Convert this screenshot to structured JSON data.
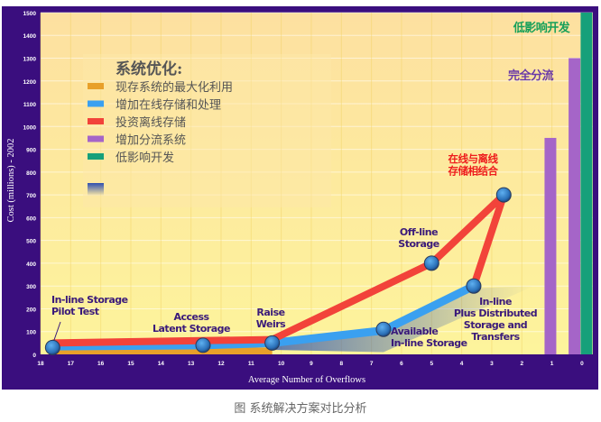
{
  "chart_data": {
    "type": "line",
    "title": "系统优化:",
    "xlabel": "Average Number of Overflows",
    "ylabel": "Cost (millions) - 2002",
    "xlim": [
      18,
      0
    ],
    "ylim": [
      0,
      1500
    ],
    "x_ticks": [
      "18",
      "17",
      "16",
      "15",
      "14",
      "13",
      "12",
      "11",
      "10",
      "9",
      "8",
      "7",
      "6",
      "5",
      "4",
      "3",
      "2",
      "1",
      "0"
    ],
    "y_ticks": [
      "0",
      "100",
      "200",
      "300",
      "400",
      "500",
      "600",
      "700",
      "800",
      "900",
      "1000",
      "1100",
      "1200",
      "1300",
      "1400",
      "1500"
    ],
    "grid": true,
    "legend_placement": "top-left",
    "legend": [
      {
        "label": "现存系统的最大化利用",
        "color": "#e8a02a"
      },
      {
        "label": "增加在线存储和处理",
        "color": "#3aa0f0"
      },
      {
        "label": "投资离线存储",
        "color": "#f2433a"
      },
      {
        "label": "增加分流系统",
        "color": "#a565c8"
      },
      {
        "label": "低影响开发",
        "color": "#16a07a"
      }
    ],
    "series": [
      {
        "name": "现存系统的最大化利用",
        "type": "area",
        "color": "#e8a02a",
        "x": [
          17.6,
          10.3
        ],
        "y": [
          25,
          30
        ]
      },
      {
        "name": "增加在线存储和处理",
        "color": "#3aa0f0",
        "x": [
          17.6,
          12.6,
          10.3,
          6.6,
          3.6
        ],
        "y": [
          35,
          40,
          50,
          105,
          300
        ]
      },
      {
        "name": "投资离线存储",
        "color": "#f2433a",
        "x": [
          17.6,
          10.3,
          5.0,
          2.6,
          3.6
        ],
        "y": [
          50,
          65,
          400,
          700,
          300
        ]
      },
      {
        "name": "增加分流系统",
        "type": "bar",
        "color": "#a565c8",
        "x": [
          1.05,
          0.25
        ],
        "y": [
          950,
          1300
        ]
      },
      {
        "name": "低影响开发",
        "type": "bar",
        "color": "#16a07a",
        "x": [
          -0.15
        ],
        "y": [
          1500
        ]
      }
    ],
    "points": [
      {
        "label": "In-line Storage Pilot Test",
        "x": 17.6,
        "y": 30
      },
      {
        "label": "Access Latent Storage",
        "x": 12.6,
        "y": 40
      },
      {
        "label": "Raise Weirs",
        "x": 10.3,
        "y": 50
      },
      {
        "label": "Available In-line Storage",
        "x": 6.6,
        "y": 110
      },
      {
        "label": "Off-line Storage",
        "x": 5.0,
        "y": 400
      },
      {
        "label": "In-line Plus Distributed Storage and Transfers",
        "x": 3.6,
        "y": 300
      },
      {
        "label": "",
        "x": 2.6,
        "y": 700
      }
    ],
    "annotations": [
      {
        "lines": [
          "In-line Storage",
          "Pilot Test"
        ],
        "color": "#3a1a7a"
      },
      {
        "lines": [
          "Access",
          "Latent Storage"
        ],
        "color": "#3a1a7a"
      },
      {
        "lines": [
          "Raise",
          "Weirs"
        ],
        "color": "#3a1a7a"
      },
      {
        "lines": [
          "Available",
          "In-line Storage"
        ],
        "color": "#3a1a7a"
      },
      {
        "lines": [
          "Off-line",
          "Storage"
        ],
        "color": "#3a1a7a"
      },
      {
        "lines": [
          "In-line",
          "Plus  Distributed",
          "Storage and",
          "Transfers"
        ],
        "color": "#3a1a7a"
      },
      {
        "lines": [
          "在线与离线",
          "存储相结合"
        ],
        "color": "#ee1c1c"
      },
      {
        "lines": [
          "完全分流"
        ],
        "color": "#6a3aa8"
      },
      {
        "lines": [
          "低影响开发"
        ],
        "color": "#16a05a"
      }
    ]
  },
  "caption": "图 系统解决方案对比分析"
}
